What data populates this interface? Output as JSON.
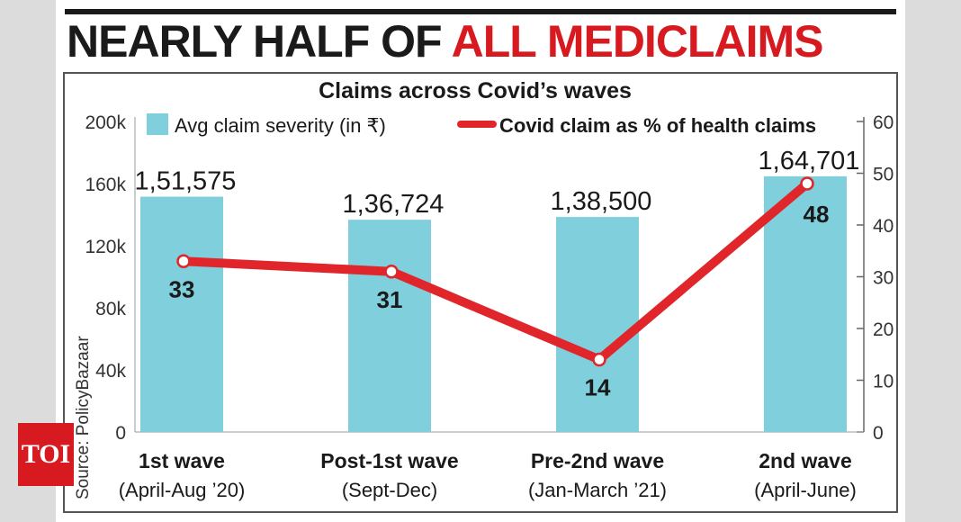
{
  "headline": {
    "part1": "NEARLY HALF OF ",
    "part2": "ALL MEDICLAIMS"
  },
  "badge": {
    "text": "TOI"
  },
  "colors": {
    "bar": "#7fcfdc",
    "line": "#e0262b",
    "headline_red": "#d71920",
    "text": "#1a1a1a"
  },
  "chart_data": {
    "type": "bar",
    "title": "Claims across Covid’s waves",
    "source": "Source: PolicyBazaar",
    "categories": [
      [
        "1st wave",
        "(April-Aug ’20)"
      ],
      [
        "Post-1st wave",
        "(Sept-Dec)"
      ],
      [
        "Pre-2nd wave",
        "(Jan-March ’21)"
      ],
      [
        "2nd wave",
        "(April-June)"
      ]
    ],
    "series": [
      {
        "name": "Avg claim severity (in ₹)",
        "kind": "bar",
        "axis": "left",
        "values": [
          151575,
          136724,
          138500,
          164701
        ],
        "labels": [
          "1,51,575",
          "1,36,724",
          "1,38,500",
          "1,64,701"
        ]
      },
      {
        "name": "Covid claim as % of health claims",
        "kind": "line",
        "axis": "right",
        "values": [
          33,
          31,
          14,
          48
        ],
        "labels": [
          "33",
          "31",
          "14",
          "48"
        ]
      }
    ],
    "y_left": {
      "range": [
        0,
        200000
      ],
      "ticks": [
        0,
        40000,
        80000,
        120000,
        160000,
        200000
      ],
      "tick_labels": [
        "0",
        "40k",
        "80k",
        "120k",
        "160k",
        "200k"
      ]
    },
    "y_right": {
      "range": [
        0,
        60
      ],
      "ticks": [
        0,
        10,
        20,
        30,
        40,
        50,
        60
      ],
      "tick_labels": [
        "0",
        "10",
        "20",
        "30",
        "40",
        "50",
        "60"
      ]
    },
    "legend_position": "top",
    "grid": false
  }
}
